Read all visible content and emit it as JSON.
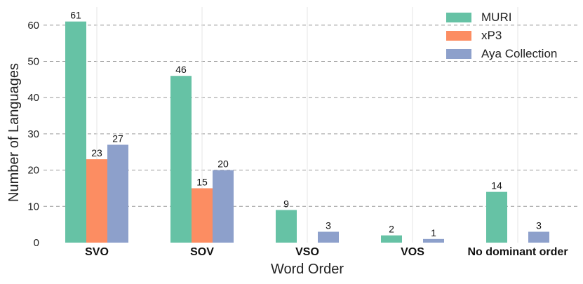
{
  "chart_data": {
    "type": "bar",
    "title": "",
    "xlabel": "Word Order",
    "ylabel": "Number of Languages",
    "categories": [
      "SVO",
      "SOV",
      "VSO",
      "VOS",
      "No dominant order"
    ],
    "series": [
      {
        "name": "MURI",
        "values": [
          61,
          46,
          9,
          2,
          14
        ],
        "color": "#66c2a5"
      },
      {
        "name": "xP3",
        "values": [
          23,
          15,
          0,
          0,
          0
        ],
        "color": "#fc8d62"
      },
      {
        "name": "Aya Collection",
        "values": [
          27,
          20,
          3,
          1,
          3
        ],
        "color": "#8da0cb"
      }
    ],
    "ylim": [
      0,
      65
    ],
    "yticks": [
      0,
      10,
      20,
      30,
      40,
      50,
      60
    ],
    "grid": true,
    "legend_position": "top-right"
  }
}
